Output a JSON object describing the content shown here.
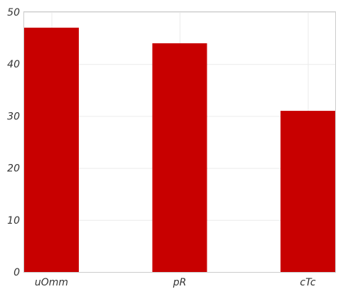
{
  "chart_data": {
    "type": "bar",
    "categories": [
      "uOmm",
      "pR",
      "cTc"
    ],
    "values": [
      47,
      44,
      31
    ],
    "title": "",
    "xlabel": "",
    "ylabel": "",
    "ylim": [
      0,
      50
    ],
    "yticks": [
      0,
      10,
      20,
      30,
      40,
      50
    ],
    "grid": true,
    "legend": "none",
    "bar_color": "#c80000"
  }
}
